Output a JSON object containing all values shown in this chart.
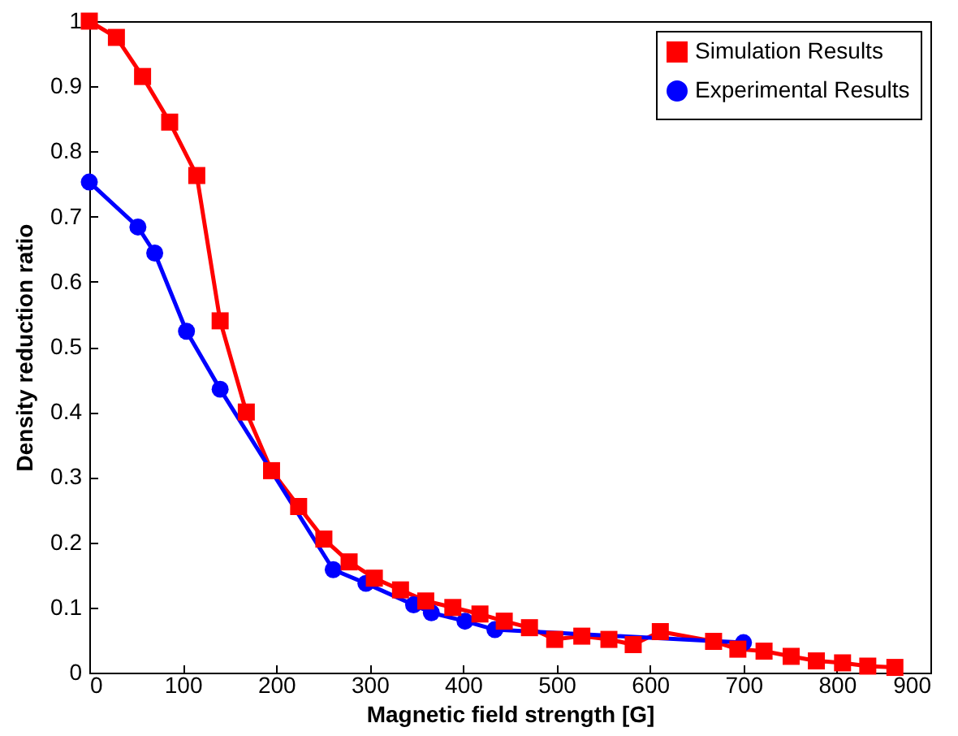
{
  "chart_data": {
    "type": "line",
    "xlabel": "Magnetic field strength [G]",
    "ylabel": "Density reduction ratio",
    "xlim": [
      0,
      900
    ],
    "xticks": [
      0,
      100,
      200,
      300,
      400,
      500,
      600,
      700,
      800,
      900
    ],
    "ylim": [
      0,
      1
    ],
    "yticks": [
      0,
      0.1,
      0.2,
      0.3,
      0.4,
      0.5,
      0.6,
      0.7,
      0.8,
      0.9,
      1
    ],
    "grid": false,
    "legend": "top right",
    "line_style": "solid",
    "series": [
      {
        "name": "Simulation Results",
        "color": "#ff0000",
        "marker": "square",
        "x": [
          0,
          29,
          57,
          86,
          115,
          140,
          168,
          195,
          224,
          251,
          278,
          305,
          333,
          360,
          389,
          418,
          444,
          471,
          498,
          527,
          556,
          582,
          611,
          668,
          694,
          722,
          751,
          778,
          806,
          833,
          862
        ],
        "values": [
          1.0,
          0.975,
          0.915,
          0.845,
          0.763,
          0.54,
          0.4,
          0.31,
          0.255,
          0.205,
          0.17,
          0.145,
          0.127,
          0.11,
          0.1,
          0.09,
          0.079,
          0.069,
          0.051,
          0.056,
          0.051,
          0.043,
          0.063,
          0.048,
          0.036,
          0.033,
          0.025,
          0.018,
          0.015,
          0.01,
          0.008
        ]
      },
      {
        "name": "Experimental Results",
        "color": "#0000ff",
        "marker": "circle",
        "x": [
          0,
          52,
          70,
          104,
          140,
          261,
          296,
          347,
          366,
          402,
          434,
          700
        ],
        "values": [
          0.753,
          0.684,
          0.644,
          0.524,
          0.435,
          0.158,
          0.137,
          0.104,
          0.092,
          0.079,
          0.066,
          0.046
        ]
      }
    ]
  }
}
